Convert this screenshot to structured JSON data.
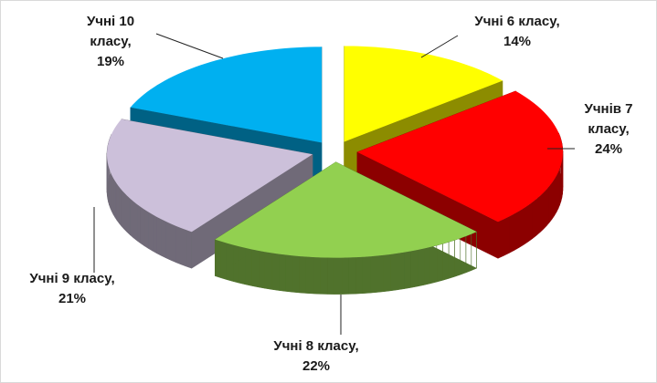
{
  "chart_data": {
    "type": "pie",
    "categories": [
      "Учні 6 класу,",
      "Учнів 7 класу,",
      "Учні 8 класу,",
      "Учні 9 класу,",
      "Учні 10 класу,"
    ],
    "values": [
      14,
      24,
      22,
      21,
      19
    ],
    "value_labels": [
      "14%",
      "24%",
      "22%",
      "21%",
      "19%"
    ],
    "colors": [
      "#ffff00",
      "#ff0000",
      "#92d050",
      "#ccc0da",
      "#00b0f0"
    ]
  }
}
